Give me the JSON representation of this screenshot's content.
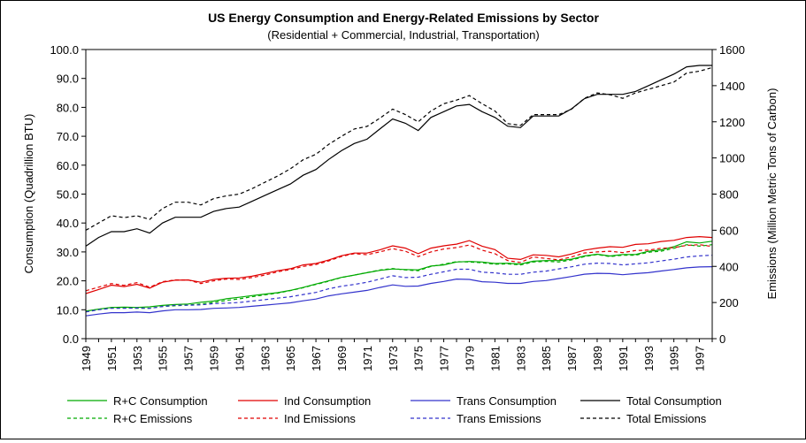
{
  "chart_data": {
    "type": "line",
    "title": "US Energy Consumption and Energy-Related Emissions by Sector",
    "subtitle": "(Residential + Commercial, Industrial, Transportation)",
    "ylabel_left": "Consumption (Quadrillion BTU)",
    "ylabel_right": "Emissions (Million Metric Tons of Carbon)",
    "ylim_left": [
      0,
      100
    ],
    "ylim_right": [
      0,
      1600
    ],
    "yticks_left": [
      "0.0",
      "10.0",
      "20.0",
      "30.0",
      "40.0",
      "50.0",
      "60.0",
      "70.0",
      "80.0",
      "90.0",
      "100.0"
    ],
    "yticks_right": [
      "0",
      "200",
      "400",
      "600",
      "800",
      "1000",
      "1200",
      "1400",
      "1600"
    ],
    "xlim": [
      1949,
      1998
    ],
    "xtick_labels": [
      "1949",
      "1951",
      "1953",
      "1955",
      "1957",
      "1959",
      "1961",
      "1963",
      "1965",
      "1967",
      "1969",
      "1971",
      "1973",
      "1975",
      "1977",
      "1979",
      "1981",
      "1983",
      "1985",
      "1987",
      "1989",
      "1991",
      "1993",
      "1995",
      "1997"
    ],
    "legend_position": "bottom",
    "x": [
      1949,
      1950,
      1951,
      1952,
      1953,
      1954,
      1955,
      1956,
      1957,
      1958,
      1959,
      1960,
      1961,
      1962,
      1963,
      1964,
      1965,
      1966,
      1967,
      1968,
      1969,
      1970,
      1971,
      1972,
      1973,
      1974,
      1975,
      1976,
      1977,
      1978,
      1979,
      1980,
      1981,
      1982,
      1983,
      1984,
      1985,
      1986,
      1987,
      1988,
      1989,
      1990,
      1991,
      1992,
      1993,
      1994,
      1995,
      1996,
      1997,
      1998
    ],
    "series": [
      {
        "name": "R+C Consumption",
        "axis": "left",
        "color": "#00aa00",
        "dash": false,
        "values": [
          9.5,
          10.2,
          10.8,
          10.9,
          10.8,
          11.0,
          11.5,
          11.8,
          12.0,
          12.6,
          13.0,
          13.8,
          14.3,
          14.9,
          15.4,
          15.9,
          16.7,
          17.7,
          18.9,
          20.0,
          21.2,
          22.0,
          22.8,
          23.6,
          24.1,
          23.9,
          23.8,
          25.1,
          25.5,
          26.5,
          26.7,
          26.5,
          26.0,
          26.1,
          25.8,
          26.8,
          27.0,
          27.0,
          27.5,
          28.6,
          29.2,
          28.6,
          29.1,
          29.1,
          30.2,
          30.7,
          31.8,
          33.5,
          33.1,
          33.7
        ]
      },
      {
        "name": "Ind Consumption",
        "axis": "left",
        "color": "#e00000",
        "dash": false,
        "values": [
          15.6,
          17.0,
          18.5,
          18.0,
          18.8,
          17.5,
          19.5,
          20.2,
          20.3,
          19.5,
          20.5,
          20.9,
          21.0,
          21.6,
          22.5,
          23.5,
          24.2,
          25.5,
          26.0,
          27.2,
          28.7,
          29.6,
          29.6,
          30.7,
          32.1,
          31.3,
          29.4,
          31.3,
          32.1,
          32.7,
          33.9,
          32.0,
          30.8,
          27.8,
          27.4,
          29.0,
          28.8,
          28.3,
          29.3,
          30.6,
          31.3,
          31.8,
          31.6,
          32.6,
          32.8,
          33.6,
          34.0,
          35.0,
          35.3,
          35.0
        ]
      },
      {
        "name": "Trans Consumption",
        "axis": "left",
        "color": "#3333cc",
        "dash": false,
        "values": [
          7.9,
          8.5,
          9.0,
          9.0,
          9.2,
          9.0,
          9.6,
          10.0,
          10.0,
          10.1,
          10.5,
          10.6,
          10.8,
          11.2,
          11.6,
          12.0,
          12.4,
          13.1,
          13.7,
          14.8,
          15.5,
          16.1,
          16.7,
          17.7,
          18.6,
          18.1,
          18.2,
          19.1,
          19.8,
          20.6,
          20.5,
          19.7,
          19.5,
          19.1,
          19.1,
          19.8,
          20.1,
          20.8,
          21.5,
          22.3,
          22.6,
          22.5,
          22.1,
          22.5,
          22.8,
          23.4,
          23.9,
          24.5,
          24.8,
          24.9
        ]
      },
      {
        "name": "Total Consumption",
        "axis": "left",
        "color": "#000000",
        "dash": false,
        "values": [
          32.0,
          35.0,
          37.0,
          37.0,
          38.0,
          36.5,
          40.0,
          42.0,
          42.0,
          42.0,
          44.0,
          45.0,
          45.5,
          47.5,
          49.5,
          51.5,
          53.5,
          56.5,
          58.5,
          62.0,
          65.0,
          67.5,
          69.0,
          72.5,
          76.0,
          74.5,
          72.0,
          76.5,
          78.5,
          80.5,
          81.0,
          78.5,
          76.5,
          73.5,
          73.0,
          77.0,
          77.0,
          77.0,
          79.5,
          83.0,
          84.5,
          84.5,
          84.5,
          85.5,
          87.5,
          89.5,
          91.5,
          94.0,
          94.5,
          94.5
        ]
      },
      {
        "name": "R+C Emissions",
        "axis": "right",
        "color": "#00aa00",
        "dash": true,
        "values": [
          152,
          162,
          172,
          170,
          168,
          168,
          178,
          182,
          186,
          192,
          200,
          212,
          220,
          232,
          242,
          252,
          266,
          282,
          300,
          318,
          338,
          352,
          366,
          380,
          388,
          380,
          376,
          400,
          412,
          426,
          424,
          420,
          412,
          414,
          408,
          424,
          428,
          424,
          436,
          454,
          466,
          454,
          462,
          462,
          478,
          484,
          500,
          520,
          512,
          520
        ]
      },
      {
        "name": "Ind Emissions",
        "axis": "right",
        "color": "#e00000",
        "dash": true,
        "values": [
          265,
          285,
          305,
          295,
          310,
          285,
          315,
          325,
          325,
          305,
          320,
          330,
          328,
          338,
          352,
          370,
          382,
          400,
          410,
          430,
          455,
          470,
          465,
          480,
          498,
          484,
          454,
          480,
          496,
          504,
          518,
          490,
          470,
          432,
          422,
          452,
          444,
          436,
          452,
          474,
          480,
          484,
          476,
          488,
          490,
          500,
          504,
          516,
          520,
          510
        ]
      },
      {
        "name": "Trans Emissions",
        "axis": "right",
        "color": "#3333cc",
        "dash": true,
        "values": [
          148,
          160,
          168,
          168,
          170,
          168,
          178,
          185,
          185,
          187,
          194,
          196,
          200,
          208,
          216,
          224,
          232,
          244,
          256,
          276,
          290,
          300,
          312,
          330,
          348,
          338,
          340,
          356,
          370,
          384,
          384,
          368,
          364,
          356,
          356,
          368,
          374,
          386,
          398,
          412,
          418,
          416,
          408,
          414,
          420,
          430,
          440,
          452,
          458,
          462
        ]
      },
      {
        "name": "Total Emissions",
        "axis": "right",
        "color": "#000000",
        "dash": true,
        "values": [
          600,
          640,
          680,
          670,
          680,
          660,
          720,
          755,
          755,
          740,
          775,
          790,
          800,
          830,
          865,
          900,
          940,
          990,
          1020,
          1075,
          1120,
          1160,
          1175,
          1220,
          1270,
          1240,
          1200,
          1260,
          1300,
          1320,
          1345,
          1300,
          1260,
          1190,
          1180,
          1240,
          1240,
          1240,
          1270,
          1330,
          1360,
          1350,
          1330,
          1360,
          1380,
          1400,
          1420,
          1470,
          1480,
          1500
        ]
      }
    ]
  }
}
